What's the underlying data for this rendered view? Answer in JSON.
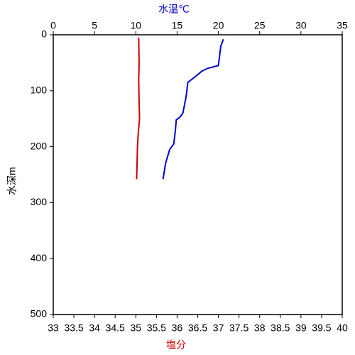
{
  "chart_data": {
    "type": "line",
    "x_label": "塩分",
    "x_label_color": "#cc0000",
    "x2_label": "水温℃",
    "x2_label_color": "#0000cc",
    "y_label": "水深m",
    "xlim": [
      33,
      40
    ],
    "xticks": [
      33,
      33.5,
      34,
      34.5,
      35,
      35.5,
      36,
      36.5,
      37,
      37.5,
      38,
      38.5,
      39,
      39.5,
      40
    ],
    "x2lim": [
      0,
      35
    ],
    "x2ticks": [
      0,
      5,
      10,
      15,
      20,
      25,
      30,
      35
    ],
    "ylim": [
      0,
      500
    ],
    "yticks": [
      0,
      100,
      200,
      300,
      400,
      500
    ],
    "y_inverted": true,
    "series": [
      {
        "color": "#cc0000",
        "axis": "x",
        "x": [
          35.07,
          35.08,
          35.07,
          35.08,
          35.09,
          35.06,
          35.04,
          35.03,
          35.02
        ],
        "y": [
          5,
          50,
          80,
          120,
          150,
          175,
          200,
          230,
          258
        ]
      },
      {
        "color": "#0000cc",
        "axis": "x2",
        "x": [
          20.6,
          20.3,
          20.0,
          18.7,
          18.0,
          17.2,
          16.3,
          16.1,
          15.7,
          15.3,
          14.9,
          14.8,
          14.6,
          14.1,
          13.6,
          13.3
        ],
        "y": [
          8,
          20,
          55,
          60,
          65,
          75,
          85,
          110,
          140,
          148,
          152,
          170,
          195,
          205,
          230,
          258
        ]
      }
    ]
  }
}
